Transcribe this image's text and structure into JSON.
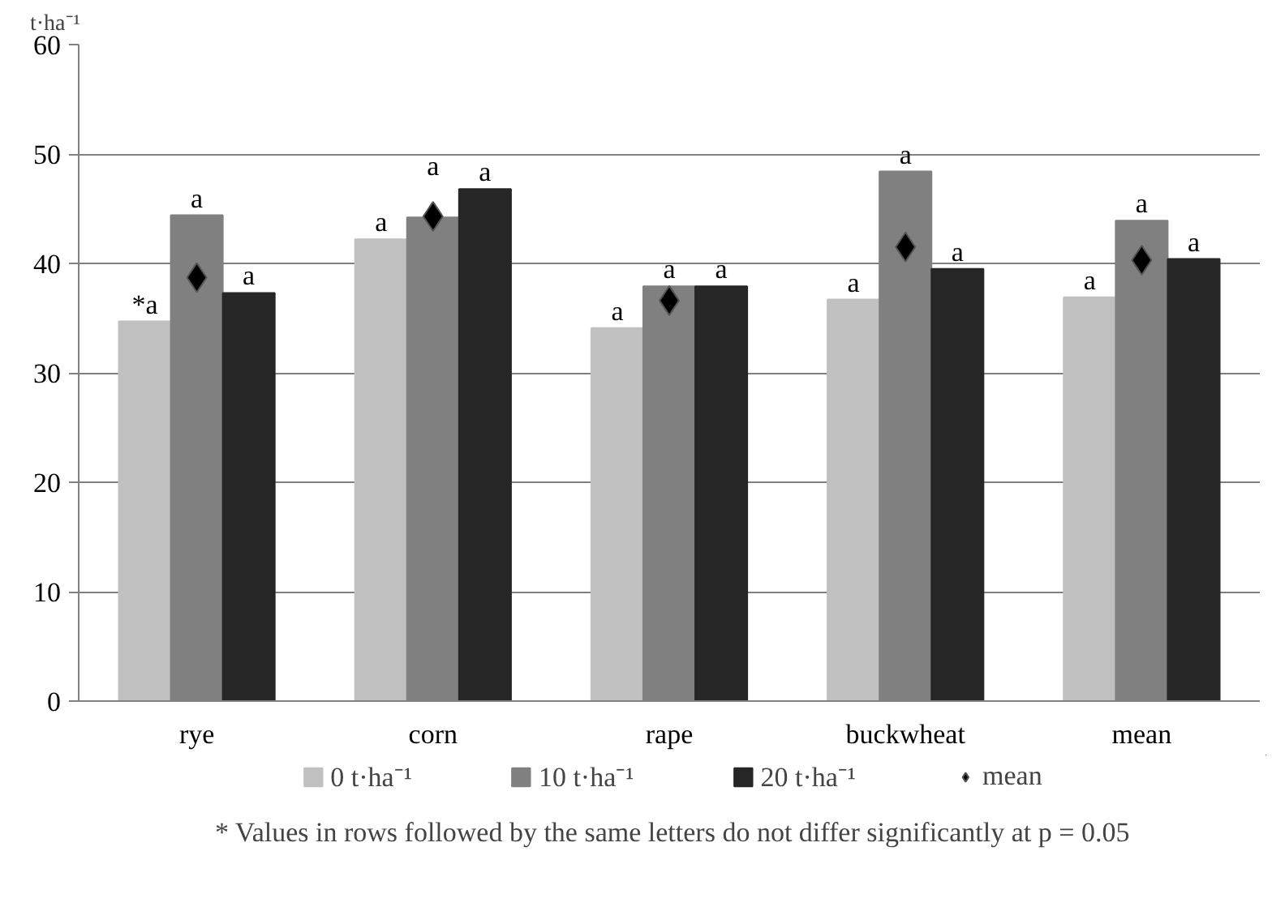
{
  "chart_data": {
    "type": "bar",
    "ylabel": "t·ha⁻¹",
    "categories": [
      "rye",
      "corn",
      "rape",
      "buckwheat",
      "mean"
    ],
    "ylim": [
      0,
      60
    ],
    "yticks": [
      0,
      10,
      20,
      30,
      40,
      50,
      60
    ],
    "grid": "y",
    "legend": "bottom",
    "series": [
      {
        "name": "0 t·ha⁻¹",
        "color": "#c0c0c0",
        "values": [
          34.7,
          42.2,
          34.1,
          36.7,
          36.9
        ],
        "value_labels": [
          "*a",
          "a",
          "a",
          "a",
          "a"
        ]
      },
      {
        "name": "10 t·ha⁻¹",
        "color": "#808080",
        "values": [
          44.4,
          44.2,
          37.9,
          48.4,
          43.9
        ],
        "value_labels": [
          "a",
          "a",
          "a",
          "a",
          "a"
        ]
      },
      {
        "name": "20 t·ha⁻¹",
        "color": "#262626",
        "values": [
          37.3,
          46.8,
          37.9,
          39.5,
          40.4
        ],
        "value_labels": [
          "a",
          "a",
          "a",
          "a",
          "a"
        ]
      },
      {
        "name": "mean",
        "type": "scatter",
        "marker": "diamond",
        "color": "#000000",
        "x": [
          "rye",
          "corn",
          "rape",
          "buckwheat",
          "mean"
        ],
        "values": [
          38.7,
          44.3,
          36.6,
          41.5,
          40.3
        ]
      }
    ],
    "annotations": [
      "* Values in rows followed by the same letters do not differ significantly at p = 0.05"
    ]
  }
}
